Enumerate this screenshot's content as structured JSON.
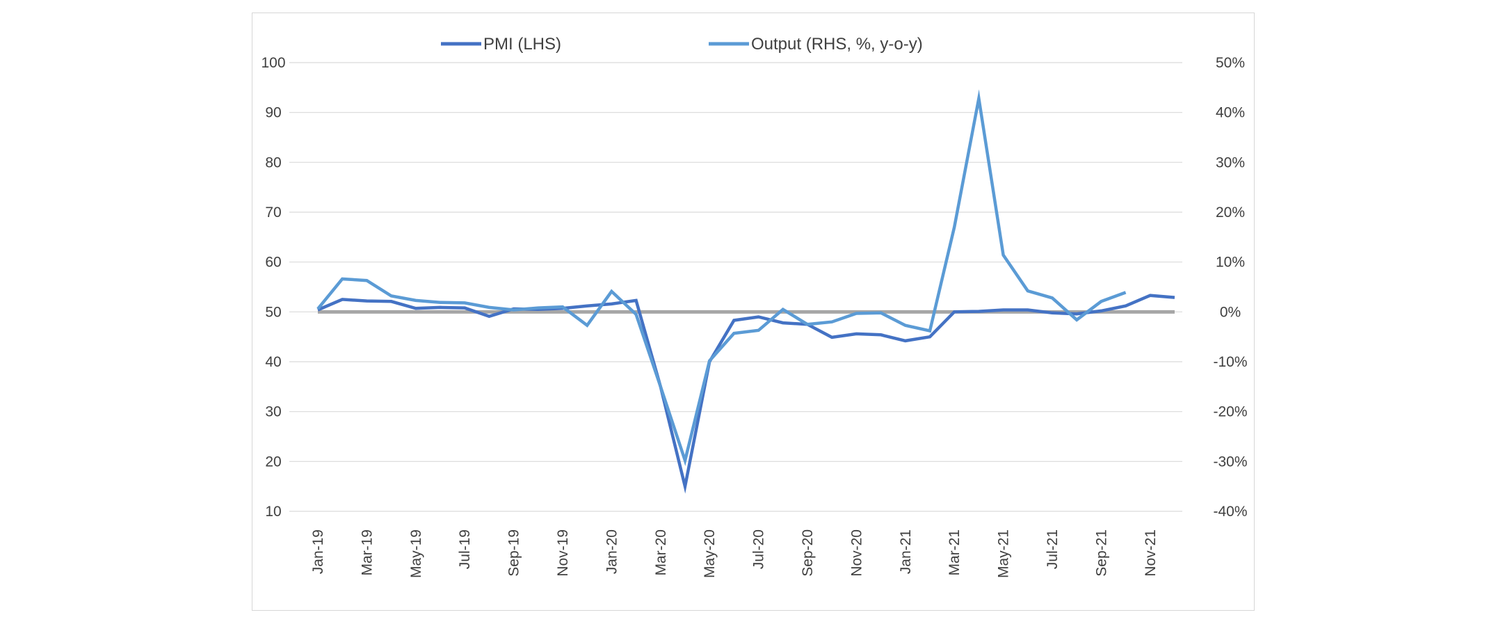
{
  "chart_data": {
    "type": "line",
    "title": "",
    "xlabel": "",
    "ylabel": "",
    "legend_position": "top",
    "grid": true,
    "x": [
      "Jan-19",
      "Feb-19",
      "Mar-19",
      "Apr-19",
      "May-19",
      "Jun-19",
      "Jul-19",
      "Aug-19",
      "Sep-19",
      "Oct-19",
      "Nov-19",
      "Dec-19",
      "Jan-20",
      "Feb-20",
      "Mar-20",
      "Apr-20",
      "May-20",
      "Jun-20",
      "Jul-20",
      "Aug-20",
      "Sep-20",
      "Oct-20",
      "Nov-20",
      "Dec-20",
      "Jan-21",
      "Feb-21",
      "Mar-21",
      "Apr-21",
      "May-21",
      "Jun-21",
      "Jul-21",
      "Aug-21",
      "Sep-21",
      "Oct-21",
      "Nov-21",
      "Dec-21"
    ],
    "x_tick_labels": [
      "Jan-19",
      "Mar-19",
      "May-19",
      "Jul-19",
      "Sep-19",
      "Nov-19",
      "Jan-20",
      "Mar-20",
      "May-20",
      "Jul-20",
      "Sep-20",
      "Nov-20",
      "Jan-21",
      "Mar-21",
      "May-21",
      "Jul-21",
      "Sep-21",
      "Nov-21"
    ],
    "y_left": {
      "ylim": [
        10,
        100
      ],
      "ticks": [
        10,
        20,
        30,
        40,
        50,
        60,
        70,
        80,
        90,
        100
      ],
      "tick_labels": [
        "10",
        "20",
        "30",
        "40",
        "50",
        "60",
        "70",
        "80",
        "90",
        "100"
      ]
    },
    "y_right": {
      "ylim": [
        -40,
        50
      ],
      "ticks": [
        -40,
        -30,
        -20,
        -10,
        0,
        10,
        20,
        30,
        40,
        50
      ],
      "tick_labels": [
        "-40%",
        "-30%",
        "-20%",
        "-10%",
        "0%",
        "10%",
        "20%",
        "30%",
        "40%",
        "50%"
      ]
    },
    "reference_line": {
      "axis": "left",
      "value": 50,
      "color": "#a6a6a6"
    },
    "series": [
      {
        "name": "PMI (LHS)",
        "axis": "left",
        "color": "#4472c4",
        "values": [
          50.4,
          52.5,
          52.2,
          52.1,
          50.7,
          50.9,
          50.8,
          49.1,
          50.6,
          50.5,
          50.7,
          51.2,
          51.6,
          52.3,
          35.0,
          15.0,
          40.0,
          48.3,
          49.0,
          47.8,
          47.5,
          44.9,
          45.6,
          45.4,
          44.2,
          45.0,
          50.0,
          50.1,
          50.4,
          50.4,
          49.8,
          49.6,
          50.2,
          51.2,
          53.3,
          52.9
        ]
      },
      {
        "name": "Output (RHS, %, y-o-y)",
        "axis": "right",
        "color": "#5b9bd5",
        "values": [
          0.6,
          6.6,
          6.3,
          3.2,
          2.3,
          1.9,
          1.8,
          0.9,
          0.4,
          0.8,
          1.0,
          -2.7,
          4.1,
          -0.5,
          -15.0,
          -29.8,
          -9.8,
          -4.3,
          -3.7,
          0.5,
          -2.5,
          -2.0,
          -0.3,
          -0.2,
          -2.7,
          -3.8,
          17.0,
          42.8,
          11.4,
          4.2,
          2.8,
          -1.6,
          2.1,
          3.9,
          null,
          null
        ]
      }
    ]
  }
}
